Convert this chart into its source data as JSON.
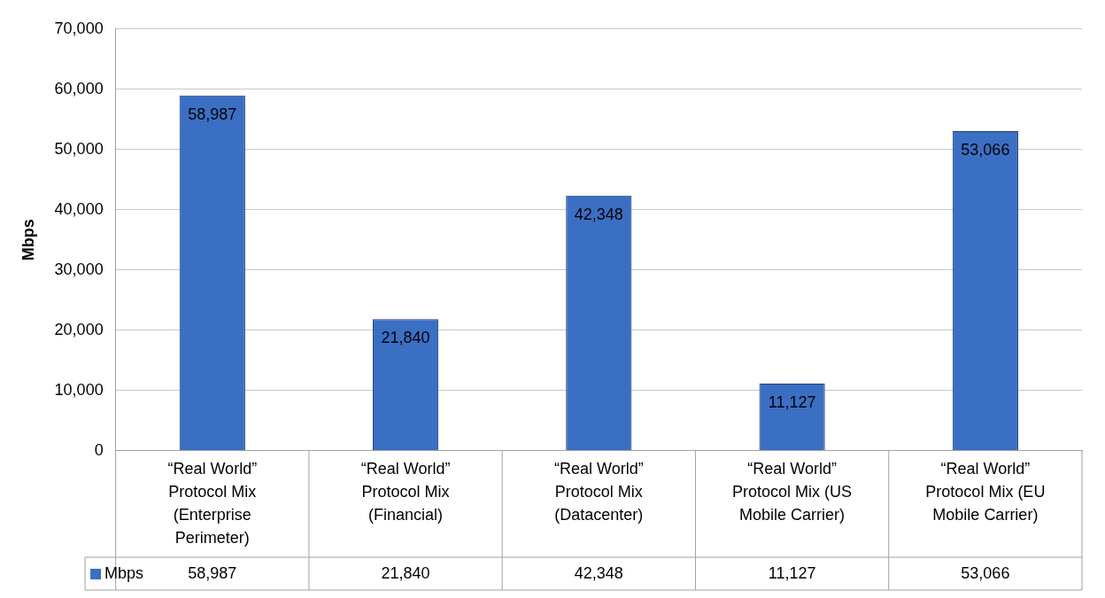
{
  "chart_data": {
    "type": "bar",
    "ylabel": "Mbps",
    "categories": [
      "“Real World” Protocol Mix (Enterprise Perimeter)",
      "“Real World” Protocol Mix (Financial)",
      "“Real World” Protocol Mix (Datacenter)",
      "“Real World” Protocol Mix (US Mobile Carrier)",
      "“Real World” Protocol Mix (EU Mobile Carrier)"
    ],
    "series": [
      {
        "name": "Mbps",
        "color": "#3b6fc4",
        "values": [
          58987,
          21840,
          42348,
          11127,
          53066
        ],
        "value_labels": [
          "58,987",
          "21,840",
          "42,348",
          "11,127",
          "53,066"
        ]
      }
    ],
    "ylim": [
      0,
      70000
    ],
    "yticks": [
      {
        "value": 0,
        "label": "0"
      },
      {
        "value": 10000,
        "label": "10,000"
      },
      {
        "value": 20000,
        "label": "20,000"
      },
      {
        "value": 30000,
        "label": "30,000"
      },
      {
        "value": 40000,
        "label": "40,000"
      },
      {
        "value": 50000,
        "label": "50,000"
      },
      {
        "value": 60000,
        "label": "60,000"
      },
      {
        "value": 70000,
        "label": "70,000"
      }
    ],
    "grid": "y",
    "legend": "bottom"
  }
}
